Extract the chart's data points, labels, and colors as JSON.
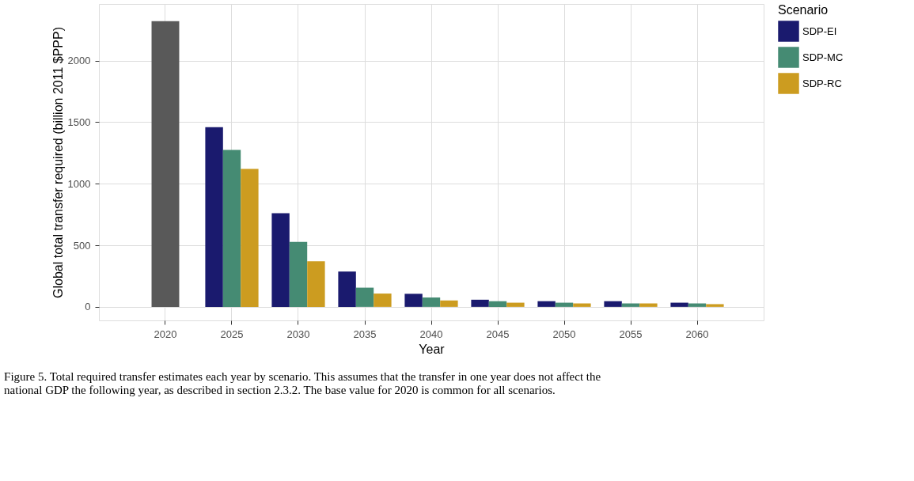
{
  "chart_data": {
    "type": "bar",
    "xlabel": "Year",
    "ylabel": "Global total transfer required (billion 2011 $PPP)",
    "legend_title": "Scenario",
    "legend": "right",
    "grid": true,
    "categories": [
      "2020",
      "2025",
      "2030",
      "2035",
      "2040",
      "2045",
      "2050",
      "2055",
      "2060"
    ],
    "ylim": [
      -110,
      2460
    ],
    "yticks": [
      0,
      500,
      1000,
      1500,
      2000
    ],
    "series": [
      {
        "color": "#595959",
        "values": [
          2320,
          null,
          null,
          null,
          null,
          null,
          null,
          null,
          null
        ]
      },
      {
        "name": "SDP-EI",
        "color": "#1a1a6e",
        "values": [
          null,
          1460,
          760,
          287,
          106,
          58,
          46,
          46,
          34
        ]
      },
      {
        "name": "SDP-MC",
        "color": "#458b73",
        "values": [
          null,
          1275,
          527,
          156,
          76,
          46,
          34,
          28,
          28
        ]
      },
      {
        "name": "SDP-RC",
        "color": "#cc9c20",
        "values": [
          null,
          1120,
          371,
          108,
          52,
          34,
          28,
          28,
          22
        ]
      }
    ],
    "annotations": [
      "Figure 5. Total required transfer estimates each year by scenario. This assumes that the transfer in one year does not affect the",
      "national GDP the following year, as described in section 2.3.2. The base value for 2020 is common for all scenarios."
    ]
  }
}
